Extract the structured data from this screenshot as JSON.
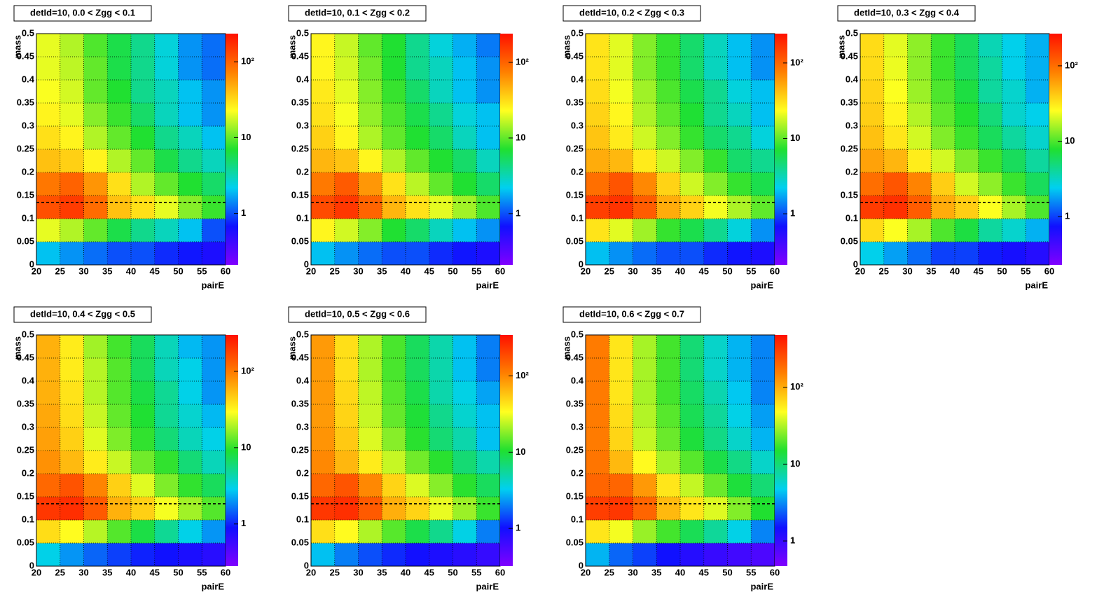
{
  "chart_data": [
    {
      "type": "heatmap",
      "title": "detId=10, 0.0 < Zgg < 0.1",
      "x_label": "pairE",
      "y_label": "mass",
      "xbins": [
        20,
        25,
        30,
        35,
        40,
        45,
        50,
        55,
        60
      ],
      "ybins": [
        0,
        0.05,
        0.1,
        0.15,
        0.2,
        0.25,
        0.3,
        0.35,
        0.4,
        0.45,
        0.5
      ],
      "values": [
        [
          2,
          1.5,
          1.2,
          1,
          1,
          0.8,
          0.7,
          0.6
        ],
        [
          20,
          15,
          10,
          6,
          4,
          3,
          2,
          1
        ],
        [
          120,
          150,
          90,
          40,
          30,
          20,
          12,
          8
        ],
        [
          80,
          100,
          60,
          30,
          15,
          10,
          7,
          5
        ],
        [
          40,
          35,
          25,
          15,
          10,
          6,
          4,
          3
        ],
        [
          30,
          25,
          15,
          10,
          7,
          4,
          3,
          2
        ],
        [
          25,
          20,
          12,
          8,
          5,
          3,
          2,
          1.5
        ],
        [
          22,
          18,
          10,
          7,
          4,
          3,
          2,
          1.5
        ],
        [
          20,
          16,
          10,
          6,
          4,
          2.5,
          1.5,
          1.2
        ],
        [
          20,
          15,
          9,
          6,
          4,
          2.5,
          1.5,
          1.2
        ]
      ],
      "xlim": [
        20,
        60
      ],
      "ylim": [
        0,
        0.5
      ],
      "xticks": [
        20,
        25,
        30,
        35,
        40,
        45,
        50,
        55,
        60
      ],
      "yticks": [
        0,
        0.05,
        0.1,
        0.15,
        0.2,
        0.25,
        0.3,
        0.35,
        0.4,
        0.45,
        0.5
      ],
      "zlim": [
        0.21,
        235
      ],
      "zticks": [
        1,
        10,
        {
          "value": 100,
          "label": "10²"
        }
      ],
      "log_z": true,
      "grid": true,
      "hline": 0.135,
      "colors": [
        "#8000ff",
        "#1010ff",
        "#00d0f0",
        "#20e030",
        "#ffff20",
        "#ff8000",
        "#ff1000"
      ]
    },
    {
      "type": "heatmap",
      "title": "detId=10, 0.1 < Zgg < 0.2",
      "x_label": "pairE",
      "y_label": "mass",
      "xbins": [
        20,
        25,
        30,
        35,
        40,
        45,
        50,
        55,
        60
      ],
      "ybins": [
        0,
        0.05,
        0.1,
        0.15,
        0.2,
        0.25,
        0.3,
        0.35,
        0.4,
        0.45,
        0.5
      ],
      "values": [
        [
          2,
          1.5,
          1.2,
          1,
          1,
          0.8,
          0.7,
          0.6
        ],
        [
          25,
          18,
          12,
          7,
          5,
          3,
          2,
          1.5
        ],
        [
          130,
          160,
          100,
          45,
          30,
          20,
          14,
          9
        ],
        [
          80,
          110,
          60,
          30,
          16,
          10,
          7,
          5
        ],
        [
          45,
          40,
          25,
          15,
          10,
          7,
          5,
          3
        ],
        [
          35,
          25,
          15,
          10,
          7,
          5,
          3,
          2
        ],
        [
          30,
          22,
          13,
          9,
          6,
          4,
          2.5,
          2
        ],
        [
          28,
          20,
          12,
          8,
          5,
          3,
          2,
          1.5
        ],
        [
          25,
          18,
          11,
          7,
          4,
          3,
          2,
          1.5
        ],
        [
          25,
          17,
          10,
          7,
          4,
          2.5,
          1.8,
          1.3
        ]
      ],
      "xlim": [
        20,
        60
      ],
      "ylim": [
        0,
        0.5
      ],
      "xticks": [
        20,
        25,
        30,
        35,
        40,
        45,
        50,
        55,
        60
      ],
      "yticks": [
        0,
        0.05,
        0.1,
        0.15,
        0.2,
        0.25,
        0.3,
        0.35,
        0.4,
        0.45,
        0.5
      ],
      "zlim": [
        0.21,
        240
      ],
      "zticks": [
        1,
        10,
        {
          "value": 100,
          "label": "10²"
        }
      ],
      "log_z": true,
      "grid": true,
      "hline": 0.135,
      "colors": [
        "#8000ff",
        "#1010ff",
        "#00d0f0",
        "#20e030",
        "#ffff20",
        "#ff8000",
        "#ff1000"
      ]
    },
    {
      "type": "heatmap",
      "title": "detId=10, 0.2 < Zgg < 0.3",
      "x_label": "pairE",
      "y_label": "mass",
      "xbins": [
        20,
        25,
        30,
        35,
        40,
        45,
        50,
        55,
        60
      ],
      "ybins": [
        0,
        0.05,
        0.1,
        0.15,
        0.2,
        0.25,
        0.3,
        0.35,
        0.4,
        0.45,
        0.5
      ],
      "values": [
        [
          2,
          1.5,
          1.2,
          1,
          1,
          0.8,
          0.7,
          0.6
        ],
        [
          30,
          20,
          14,
          8,
          6,
          4,
          2.5,
          1.5
        ],
        [
          150,
          170,
          110,
          50,
          35,
          22,
          15,
          10
        ],
        [
          90,
          120,
          70,
          35,
          18,
          12,
          8,
          6
        ],
        [
          50,
          45,
          28,
          18,
          12,
          8,
          5,
          4
        ],
        [
          40,
          28,
          18,
          12,
          8,
          5,
          4,
          2.5
        ],
        [
          35,
          25,
          15,
          10,
          7,
          4,
          3,
          2
        ],
        [
          32,
          22,
          14,
          9,
          6,
          4,
          2.5,
          2
        ],
        [
          30,
          20,
          12,
          8,
          5,
          3,
          2,
          1.5
        ],
        [
          30,
          20,
          12,
          8,
          5,
          3,
          2,
          1.5
        ]
      ],
      "xlim": [
        20,
        60
      ],
      "ylim": [
        0,
        0.5
      ],
      "xticks": [
        20,
        25,
        30,
        35,
        40,
        45,
        50,
        55,
        60
      ],
      "yticks": [
        0,
        0.05,
        0.1,
        0.15,
        0.2,
        0.25,
        0.3,
        0.35,
        0.4,
        0.45,
        0.5
      ],
      "zlim": [
        0.21,
        245
      ],
      "zticks": [
        1,
        10,
        {
          "value": 100,
          "label": "10²"
        }
      ],
      "log_z": true,
      "grid": true,
      "hline": 0.135,
      "colors": [
        "#8000ff",
        "#1010ff",
        "#00d0f0",
        "#20e030",
        "#ffff20",
        "#ff8000",
        "#ff1000"
      ]
    },
    {
      "type": "heatmap",
      "title": "detId=10, 0.3 < Zgg < 0.4",
      "x_label": "pairE",
      "y_label": "mass",
      "xbins": [
        20,
        25,
        30,
        35,
        40,
        45,
        50,
        55,
        60
      ],
      "ybins": [
        0,
        0.05,
        0.1,
        0.15,
        0.2,
        0.25,
        0.3,
        0.35,
        0.4,
        0.45,
        0.5
      ],
      "values": [
        [
          2.5,
          1.8,
          1.3,
          1,
          1,
          0.8,
          0.7,
          0.6
        ],
        [
          35,
          25,
          16,
          10,
          7,
          4,
          3,
          2
        ],
        [
          170,
          190,
          120,
          55,
          40,
          25,
          16,
          10
        ],
        [
          100,
          130,
          80,
          40,
          20,
          14,
          9,
          6
        ],
        [
          60,
          50,
          30,
          20,
          13,
          9,
          6,
          4
        ],
        [
          45,
          32,
          20,
          13,
          9,
          6,
          4,
          3
        ],
        [
          40,
          28,
          17,
          11,
          8,
          5,
          3,
          2.5
        ],
        [
          38,
          25,
          15,
          10,
          7,
          4,
          3,
          2
        ],
        [
          35,
          23,
          14,
          9,
          6,
          4,
          2.5,
          2
        ],
        [
          35,
          22,
          14,
          9,
          6,
          3.5,
          2.5,
          2
        ]
      ],
      "xlim": [
        20,
        60
      ],
      "ylim": [
        0,
        0.5
      ],
      "xticks": [
        20,
        25,
        30,
        35,
        40,
        45,
        50,
        55,
        60
      ],
      "yticks": [
        0,
        0.05,
        0.1,
        0.15,
        0.2,
        0.25,
        0.3,
        0.35,
        0.4,
        0.45,
        0.5
      ],
      "zlim": [
        0.23,
        267
      ],
      "zticks": [
        1,
        10,
        {
          "value": 100,
          "label": "10²"
        }
      ],
      "log_z": true,
      "grid": true,
      "hline": 0.135,
      "colors": [
        "#8000ff",
        "#1010ff",
        "#00d0f0",
        "#20e030",
        "#ffff20",
        "#ff8000",
        "#ff1000"
      ]
    },
    {
      "type": "heatmap",
      "title": "detId=10, 0.4 < Zgg < 0.5",
      "x_label": "pairE",
      "y_label": "mass",
      "xbins": [
        20,
        25,
        30,
        35,
        40,
        45,
        50,
        55,
        60
      ],
      "ybins": [
        0,
        0.05,
        0.1,
        0.15,
        0.2,
        0.25,
        0.3,
        0.35,
        0.4,
        0.45,
        0.5
      ],
      "values": [
        [
          3,
          2,
          1.5,
          1.2,
          1,
          0.9,
          0.8,
          0.7
        ],
        [
          40,
          30,
          20,
          12,
          8,
          5,
          3,
          2
        ],
        [
          200,
          220,
          140,
          60,
          45,
          28,
          18,
          12
        ],
        [
          120,
          150,
          90,
          45,
          25,
          15,
          10,
          7
        ],
        [
          80,
          55,
          35,
          22,
          14,
          10,
          6,
          4
        ],
        [
          70,
          45,
          25,
          15,
          10,
          6,
          4,
          3
        ],
        [
          65,
          40,
          22,
          13,
          9,
          5,
          3.5,
          2.5
        ],
        [
          60,
          38,
          20,
          12,
          8,
          5,
          3,
          2
        ],
        [
          60,
          35,
          20,
          12,
          7,
          4,
          3,
          2
        ],
        [
          60,
          35,
          18,
          11,
          7,
          4,
          2.5,
          2
        ]
      ],
      "xlim": [
        20,
        60
      ],
      "ylim": [
        0,
        0.5
      ],
      "xticks": [
        20,
        25,
        30,
        35,
        40,
        45,
        50,
        55,
        60
      ],
      "yticks": [
        0,
        0.05,
        0.1,
        0.15,
        0.2,
        0.25,
        0.3,
        0.35,
        0.4,
        0.45,
        0.5
      ],
      "zlim": [
        0.28,
        300
      ],
      "zticks": [
        1,
        10,
        {
          "value": 100,
          "label": "10²"
        }
      ],
      "log_z": true,
      "grid": true,
      "hline": 0.135,
      "colors": [
        "#8000ff",
        "#1010ff",
        "#00d0f0",
        "#20e030",
        "#ffff20",
        "#ff8000",
        "#ff1000"
      ]
    },
    {
      "type": "heatmap",
      "title": "detId=10, 0.5 < Zgg < 0.6",
      "x_label": "pairE",
      "y_label": "mass",
      "xbins": [
        20,
        25,
        30,
        35,
        40,
        45,
        50,
        55,
        60
      ],
      "ybins": [
        0,
        0.05,
        0.1,
        0.15,
        0.2,
        0.25,
        0.3,
        0.35,
        0.4,
        0.45,
        0.5
      ],
      "values": [
        [
          3,
          2,
          1.5,
          1.2,
          1,
          0.9,
          0.8,
          0.7
        ],
        [
          45,
          35,
          22,
          14,
          9,
          6,
          3.5,
          2
        ],
        [
          230,
          250,
          160,
          70,
          50,
          30,
          20,
          12
        ],
        [
          140,
          170,
          100,
          50,
          28,
          18,
          11,
          8
        ],
        [
          100,
          65,
          40,
          25,
          16,
          11,
          7,
          5
        ],
        [
          90,
          55,
          28,
          18,
          11,
          7,
          5,
          3
        ],
        [
          85,
          50,
          25,
          15,
          10,
          6,
          4,
          3
        ],
        [
          85,
          48,
          24,
          14,
          9,
          5,
          3.5,
          2.5
        ],
        [
          85,
          45,
          22,
          13,
          8,
          5,
          3,
          2
        ],
        [
          85,
          45,
          22,
          13,
          8,
          5,
          3,
          2
        ]
      ],
      "xlim": [
        20,
        60
      ],
      "ylim": [
        0,
        0.5
      ],
      "xticks": [
        20,
        25,
        30,
        35,
        40,
        45,
        50,
        55,
        60
      ],
      "yticks": [
        0,
        0.05,
        0.1,
        0.15,
        0.2,
        0.25,
        0.3,
        0.35,
        0.4,
        0.45,
        0.5
      ],
      "zlim": [
        0.32,
        345
      ],
      "zticks": [
        1,
        10,
        {
          "value": 100,
          "label": "10²"
        }
      ],
      "log_z": true,
      "grid": true,
      "hline": 0.135,
      "colors": [
        "#8000ff",
        "#1010ff",
        "#00d0f0",
        "#20e030",
        "#ffff20",
        "#ff8000",
        "#ff1000"
      ]
    },
    {
      "type": "heatmap",
      "title": "detId=10, 0.6 < Zgg < 0.7",
      "x_label": "pairE",
      "y_label": "mass",
      "xbins": [
        20,
        25,
        30,
        35,
        40,
        45,
        50,
        55,
        60
      ],
      "ybins": [
        0,
        0.05,
        0.1,
        0.15,
        0.2,
        0.25,
        0.3,
        0.35,
        0.4,
        0.45,
        0.5
      ],
      "values": [
        [
          4,
          2.5,
          2,
          1.5,
          1.2,
          1,
          0.9,
          0.8
        ],
        [
          60,
          45,
          28,
          18,
          12,
          8,
          5,
          3
        ],
        [
          300,
          320,
          200,
          90,
          60,
          40,
          25,
          15
        ],
        [
          200,
          200,
          120,
          60,
          35,
          22,
          14,
          10
        ],
        [
          170,
          90,
          50,
          30,
          20,
          13,
          9,
          6
        ],
        [
          160,
          70,
          35,
          22,
          14,
          9,
          6,
          4
        ],
        [
          160,
          65,
          32,
          20,
          12,
          8,
          5,
          3.5
        ],
        [
          160,
          60,
          30,
          18,
          11,
          7,
          4.5,
          3
        ],
        [
          160,
          60,
          30,
          18,
          10,
          6,
          4,
          3
        ],
        [
          160,
          60,
          30,
          18,
          10,
          6,
          4,
          3
        ]
      ],
      "xlim": [
        20,
        60
      ],
      "ylim": [
        0,
        0.5
      ],
      "xticks": [
        20,
        25,
        30,
        35,
        40,
        45,
        50,
        55,
        60
      ],
      "yticks": [
        0,
        0.05,
        0.1,
        0.15,
        0.2,
        0.25,
        0.3,
        0.35,
        0.4,
        0.45,
        0.5
      ],
      "zlim": [
        0.47,
        480
      ],
      "zticks": [
        1,
        10,
        {
          "value": 100,
          "label": "10²"
        }
      ],
      "log_z": true,
      "grid": true,
      "hline": 0.135,
      "colors": [
        "#8000ff",
        "#1010ff",
        "#00d0f0",
        "#20e030",
        "#ffff20",
        "#ff8000",
        "#ff1000"
      ]
    }
  ]
}
